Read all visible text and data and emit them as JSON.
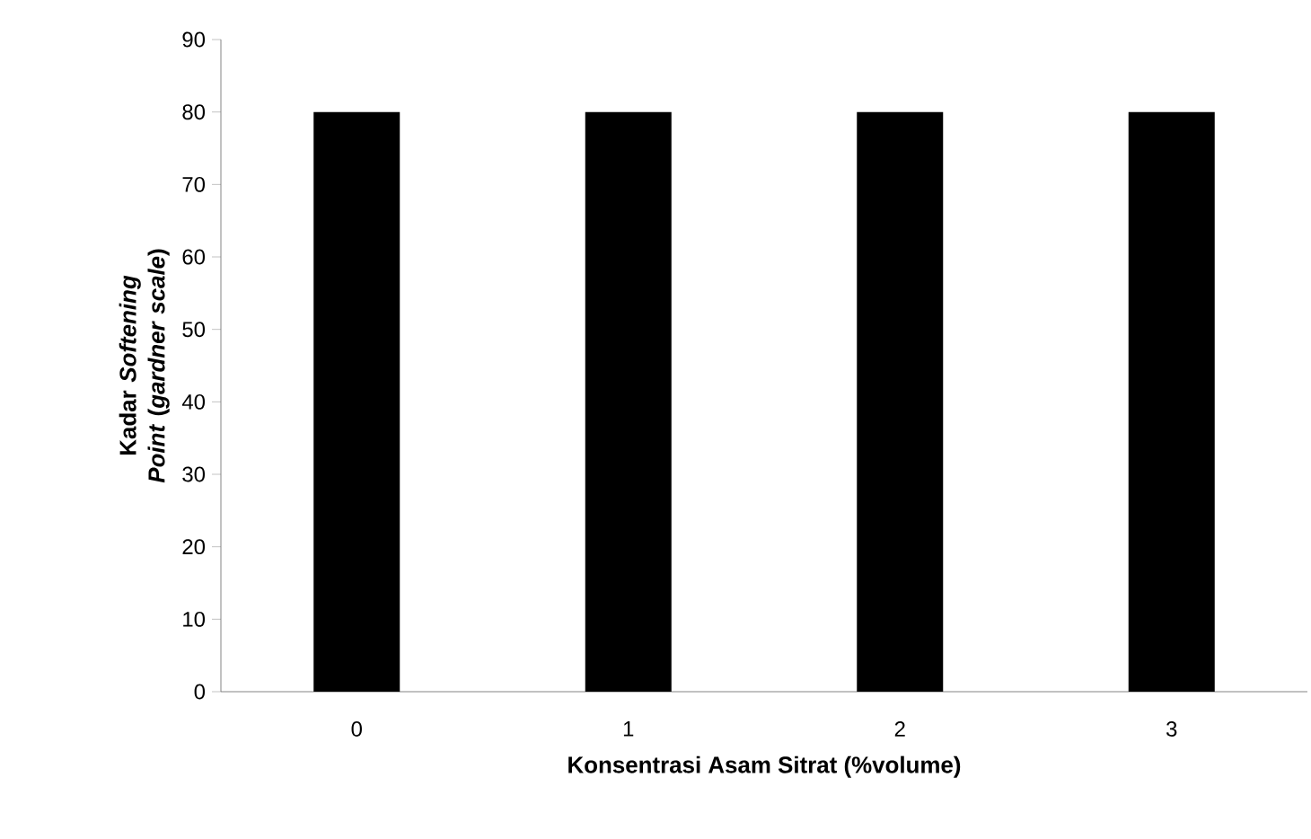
{
  "chart_data": {
    "type": "bar",
    "xlabel": "Konsentrasi Asam Sitrat (%volume)",
    "ylabel": "Kadar *Softening Point* (*gardner scale*)",
    "categories": [
      "0",
      "1",
      "2",
      "3"
    ],
    "values": [
      80,
      80,
      80,
      80
    ],
    "color": "#000000",
    "ylim": [
      0,
      90
    ],
    "yticks": [
      0,
      10,
      20,
      30,
      40,
      50,
      60,
      70,
      80,
      90
    ],
    "grid": false
  }
}
